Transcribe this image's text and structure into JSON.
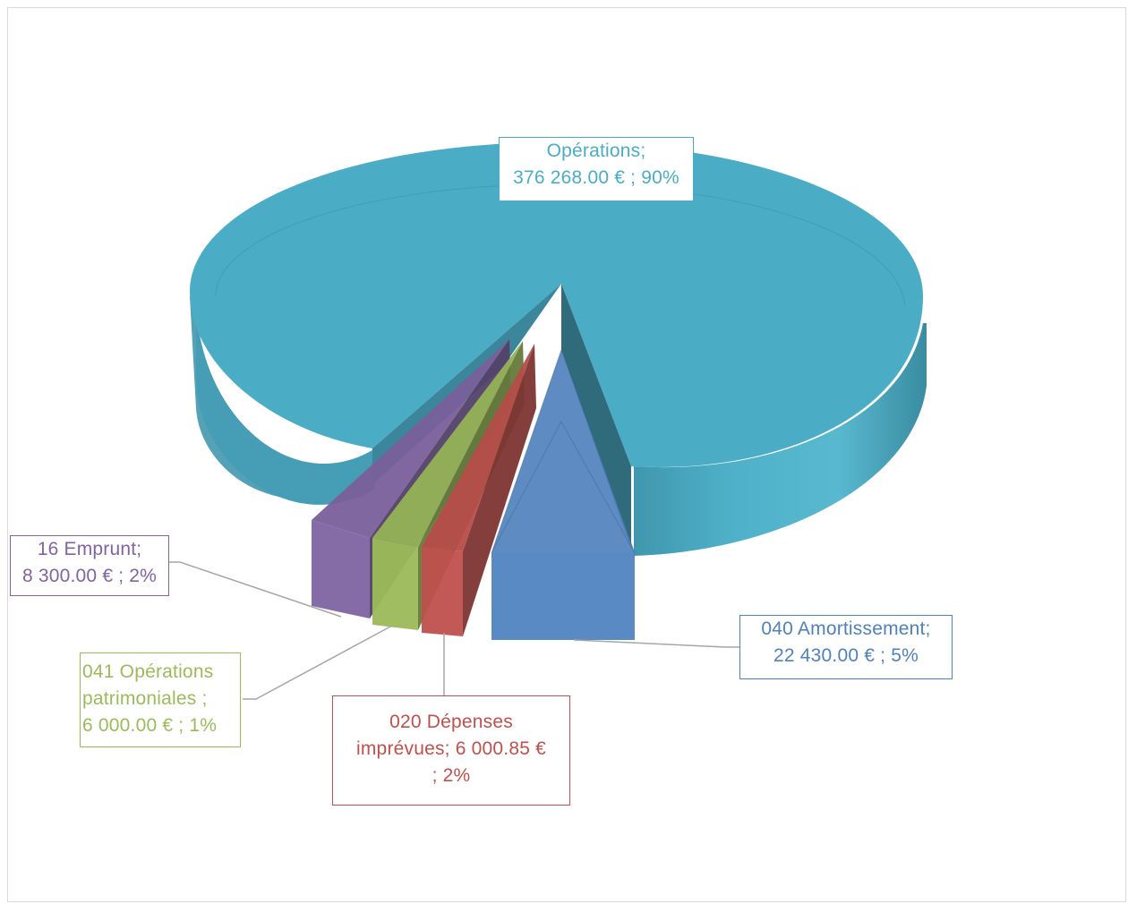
{
  "chart_data": {
    "type": "pie",
    "style": "3d-exploded",
    "title": "",
    "legend": "none",
    "series": [
      {
        "slices": [
          {
            "category": "Opérations",
            "value": 376268.0,
            "value_label": "376 268.00 € ; 90%",
            "percent": 90,
            "color": "#4bacc6",
            "label_lines": [
              "Opérations;",
              "376 268.00 € ; 90%"
            ]
          },
          {
            "category": "040 Amortissement",
            "value": 22430.0,
            "value_label": "22 430.00 € ; 5%",
            "percent": 5,
            "color": "#4f81bd",
            "label_lines": [
              "040 Amortissement;",
              "22 430.00 € ; 5%"
            ]
          },
          {
            "category": "020 Dépenses imprévues",
            "value": 6000.85,
            "value_label": "6 000.85 € ; 2%",
            "percent": 2,
            "color": "#c0504d",
            "label_lines": [
              "020 Dépenses",
              "imprévues;  6 000.85 €",
              "; 2%"
            ]
          },
          {
            "category": "041 Opérations patrimoniales",
            "value": 6000.0,
            "value_label": "6 000.00 € ; 1%",
            "percent": 1,
            "color": "#9bbb59",
            "label_lines": [
              "041 Opérations",
              "patrimoniales ;",
              "6 000.00 € ; 1%"
            ]
          },
          {
            "category": "16 Emprunt",
            "value": 8300.0,
            "value_label": "8 300.00 € ; 2%",
            "percent": 2,
            "color": "#8064a2",
            "label_lines": [
              "16 Emprunt;",
              "8 300.00 € ; 2%"
            ]
          }
        ]
      }
    ]
  }
}
